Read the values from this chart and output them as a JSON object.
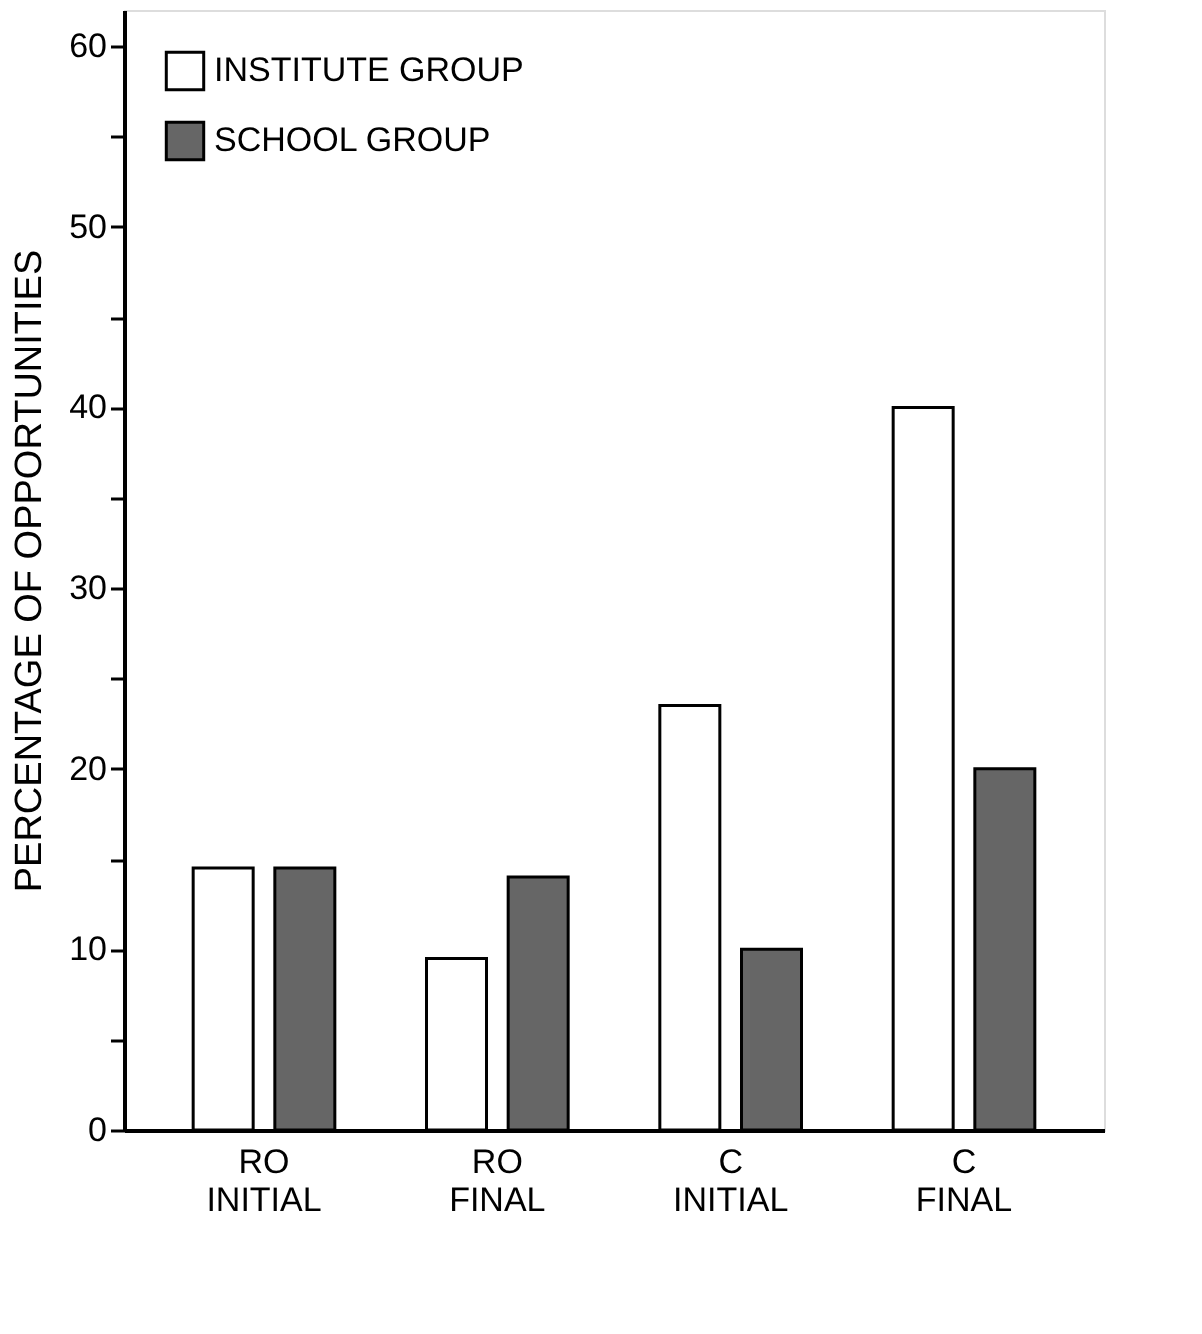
{
  "chart_data": {
    "type": "bar",
    "ylabel": "PERCENTAGE OF OPPORTUNITIES",
    "categories": [
      "RO INITIAL",
      "RO FINAL",
      "C INITIAL",
      "C FINAL"
    ],
    "series": [
      {
        "name": "INSTITUTE GROUP",
        "color": "#ffffff",
        "values": [
          14.5,
          9.5,
          23.5,
          40
        ]
      },
      {
        "name": "SCHOOL GROUP",
        "color": "#666666",
        "values": [
          14.5,
          14,
          10,
          20
        ]
      }
    ],
    "ylim": [
      0,
      62
    ],
    "yticks": [
      0,
      {
        "value": 5,
        "label": null
      },
      10,
      {
        "value": 15,
        "label": null
      },
      20,
      {
        "value": 25,
        "label": null
      },
      30,
      {
        "value": 35,
        "label": null
      },
      40,
      {
        "value": 45,
        "label": null
      },
      50,
      {
        "value": 55,
        "label": null
      },
      60
    ],
    "grid": false,
    "legend": "top left"
  }
}
